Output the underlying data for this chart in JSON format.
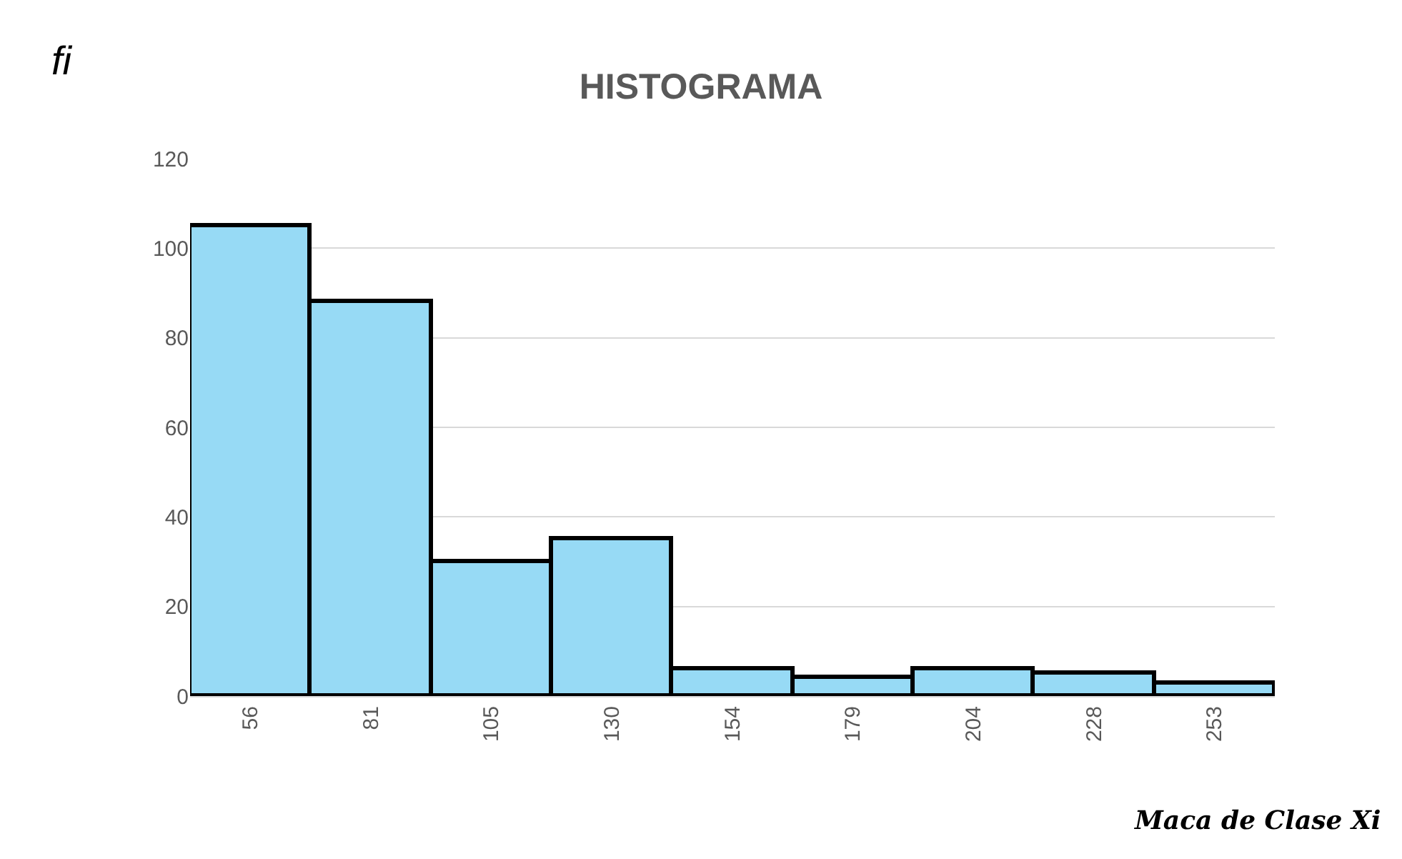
{
  "chart_data": {
    "type": "bar",
    "title": "HISTOGRAMA",
    "xlabel": "Maca de Clase Xi",
    "ylabel": "fi",
    "categories": [
      "56",
      "81",
      "105",
      "130",
      "154",
      "179",
      "204",
      "228",
      "253"
    ],
    "values": [
      105,
      88,
      30,
      35,
      6,
      4,
      6,
      5,
      3
    ],
    "color": "#97daf5",
    "ylim": [
      0,
      120
    ],
    "yticks": [
      0,
      20,
      40,
      60,
      80,
      100,
      120
    ],
    "grid": "y"
  }
}
